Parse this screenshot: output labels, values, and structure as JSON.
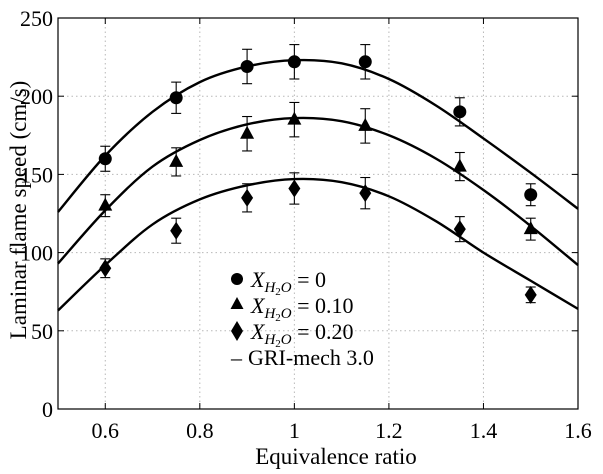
{
  "chart_data": {
    "type": "scatter",
    "xlabel": "Equivalence ratio",
    "ylabel": "Laminar flame speed (cm/s)",
    "xlim": [
      0.5,
      1.6
    ],
    "ylim": [
      0,
      250
    ],
    "xticks": [
      0.6,
      0.8,
      1.0,
      1.2,
      1.4,
      1.6
    ],
    "xtick_labels": [
      "0.6",
      "0.8",
      "1",
      "1.2",
      "1.4",
      "1.6"
    ],
    "yticks": [
      0,
      50,
      100,
      150,
      200,
      250
    ],
    "ytick_labels": [
      "0",
      "50",
      "100",
      "150",
      "200",
      "250"
    ],
    "grid": true,
    "legend_position": "lower-center",
    "series": [
      {
        "name": "X_{H2O} = 0",
        "legend_main": "X",
        "legend_sub": "H",
        "legend_sub2": "2",
        "legend_sub3": "O",
        "legend_value": " = 0",
        "marker": "circle",
        "points": [
          {
            "x": 0.6,
            "y": 160,
            "err": 8
          },
          {
            "x": 0.75,
            "y": 199,
            "err": 10
          },
          {
            "x": 0.9,
            "y": 219,
            "err": 11
          },
          {
            "x": 1.0,
            "y": 222,
            "err": 11
          },
          {
            "x": 1.15,
            "y": 222,
            "err": 11
          },
          {
            "x": 1.35,
            "y": 190,
            "err": 9
          },
          {
            "x": 1.5,
            "y": 137,
            "err": 7
          }
        ],
        "curve": [
          {
            "x": 0.5,
            "y": 126
          },
          {
            "x": 0.6,
            "y": 162
          },
          {
            "x": 0.7,
            "y": 190
          },
          {
            "x": 0.8,
            "y": 209
          },
          {
            "x": 0.9,
            "y": 219
          },
          {
            "x": 1.0,
            "y": 223
          },
          {
            "x": 1.1,
            "y": 221
          },
          {
            "x": 1.2,
            "y": 211
          },
          {
            "x": 1.3,
            "y": 194
          },
          {
            "x": 1.4,
            "y": 173
          },
          {
            "x": 1.5,
            "y": 151
          },
          {
            "x": 1.6,
            "y": 128
          }
        ]
      },
      {
        "name": "X_{H2O} = 0.10",
        "legend_main": "X",
        "legend_sub": "H",
        "legend_sub2": "2",
        "legend_sub3": "O",
        "legend_value": " = 0.10",
        "marker": "triangle",
        "points": [
          {
            "x": 0.6,
            "y": 130,
            "err": 7
          },
          {
            "x": 0.75,
            "y": 158,
            "err": 9
          },
          {
            "x": 0.9,
            "y": 176,
            "err": 11
          },
          {
            "x": 1.0,
            "y": 185,
            "err": 11
          },
          {
            "x": 1.15,
            "y": 181,
            "err": 11
          },
          {
            "x": 1.35,
            "y": 155,
            "err": 9
          },
          {
            "x": 1.5,
            "y": 115,
            "err": 7
          }
        ],
        "curve": [
          {
            "x": 0.5,
            "y": 93
          },
          {
            "x": 0.6,
            "y": 127
          },
          {
            "x": 0.7,
            "y": 155
          },
          {
            "x": 0.8,
            "y": 172
          },
          {
            "x": 0.9,
            "y": 182
          },
          {
            "x": 1.0,
            "y": 186
          },
          {
            "x": 1.1,
            "y": 184
          },
          {
            "x": 1.2,
            "y": 175
          },
          {
            "x": 1.3,
            "y": 160
          },
          {
            "x": 1.4,
            "y": 140
          },
          {
            "x": 1.5,
            "y": 117
          },
          {
            "x": 1.6,
            "y": 92
          }
        ]
      },
      {
        "name": "X_{H2O} = 0.20",
        "legend_main": "X",
        "legend_sub": "H",
        "legend_sub2": "2",
        "legend_sub3": "O",
        "legend_value": " = 0.20",
        "marker": "diamond",
        "points": [
          {
            "x": 0.6,
            "y": 90,
            "err": 6
          },
          {
            "x": 0.75,
            "y": 114,
            "err": 8
          },
          {
            "x": 0.9,
            "y": 135,
            "err": 9
          },
          {
            "x": 1.0,
            "y": 141,
            "err": 10
          },
          {
            "x": 1.15,
            "y": 138,
            "err": 10
          },
          {
            "x": 1.35,
            "y": 115,
            "err": 8
          },
          {
            "x": 1.5,
            "y": 73,
            "err": 5
          }
        ],
        "curve": [
          {
            "x": 0.5,
            "y": 63
          },
          {
            "x": 0.6,
            "y": 92
          },
          {
            "x": 0.7,
            "y": 118
          },
          {
            "x": 0.8,
            "y": 134
          },
          {
            "x": 0.9,
            "y": 143
          },
          {
            "x": 1.0,
            "y": 147
          },
          {
            "x": 1.1,
            "y": 145
          },
          {
            "x": 1.2,
            "y": 136
          },
          {
            "x": 1.3,
            "y": 120
          },
          {
            "x": 1.4,
            "y": 100
          },
          {
            "x": 1.5,
            "y": 82
          },
          {
            "x": 1.6,
            "y": 64
          }
        ]
      }
    ],
    "model_legend": "GRI-mech 3.0",
    "model_legend_prefix": "–"
  }
}
